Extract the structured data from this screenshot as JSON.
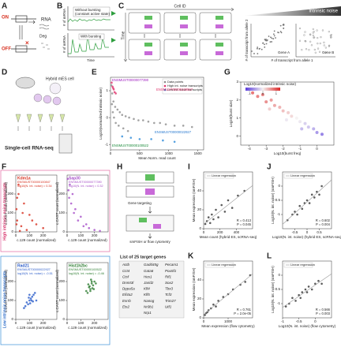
{
  "panels": {
    "A": {
      "label": "A",
      "on": "ON",
      "off": "OFF",
      "rna": "RNA",
      "deg": "Deg"
    },
    "B": {
      "label": "B",
      "y_label": "# of mRNA",
      "legend_top": "Without bursting",
      "legend_top_sub": "(constant active state)",
      "legend_bottom": "With bursting",
      "x_label": "Time"
    },
    "C": {
      "label": "C",
      "cell_id": "Cell ID",
      "time": "Time",
      "gradient": "Intrinsic noise",
      "y_label": "# of transcript from allele 2",
      "x_label": "# of transcript from allele 1",
      "gene_a": "Gene A",
      "gene_b": "Gene B"
    },
    "D": {
      "label": "D",
      "cell": "Hybrid mES cell",
      "method": "Single-cell RNA-seq"
    },
    "E": {
      "label": "E"
    },
    "F": {
      "label": "F",
      "group_high": "High intrinsic noise transcripts",
      "group_low": "Low intrinsic noise transcripts"
    },
    "G": {
      "label": "G"
    },
    "H": {
      "label": "H",
      "step1": "Gene targeting",
      "step2": "smFISH or flow cytometry",
      "list_title": "List of 25 target genes",
      "genes": [
        "Actb",
        "Cct4",
        "Ctsf",
        "Dnmt3l",
        "Dppa5a",
        "Eif4a2",
        "Esrrb",
        "Ets2",
        "Gadd45g",
        "Gata6",
        "Hes1",
        "Jarid2",
        "Klf4",
        "Klf5",
        "Nanog",
        "Nr0b1",
        "Nrp1",
        "Pecam1",
        "Pou5f1",
        "Rif1",
        "Sox2",
        "Tbx3",
        "Tcf3",
        "Trim27",
        "Utf1"
      ]
    },
    "I": {
      "label": "I"
    },
    "J": {
      "label": "J"
    },
    "K": {
      "label": "K"
    },
    "L": {
      "label": "L"
    }
  },
  "chart_data": [
    {
      "type": "scatter",
      "x_label": "Mean Norm. read count",
      "y_label": "Log10(normalized intrinsic noise)",
      "xlim": [
        0,
        1600
      ],
      "xticks": [
        0,
        500,
        1000,
        1500
      ],
      "ylim": [
        -1.2,
        1.5
      ],
      "yticks": [
        -1,
        0,
        1
      ],
      "annotations": [
        "ENSMUST00000077390",
        "ENSMUST00000100847",
        "ENSMUST00000100522",
        "ENSMUST00000022927"
      ],
      "series": [
        {
          "name": "Data points",
          "color": "#8c8c8c",
          "x": [
            15,
            30,
            50,
            80,
            120,
            160,
            200,
            260,
            320,
            400,
            480,
            560,
            650,
            750,
            850,
            950,
            1100,
            1250,
            1400,
            40,
            90,
            140,
            220,
            300,
            60,
            25
          ],
          "values": [
            1.2,
            0.9,
            0.6,
            0.4,
            0.3,
            0.2,
            0.1,
            0.05,
            0,
            -0.05,
            -0.1,
            -0.1,
            -0.15,
            -0.2,
            -0.2,
            -0.25,
            -0.3,
            -0.3,
            -0.35,
            0.2,
            -0.2,
            -0.3,
            -0.4,
            -0.5,
            0.0,
            0.5
          ]
        },
        {
          "name": "High int. noise transcripts",
          "color": "#e0306a",
          "x": [
            20,
            35,
            55,
            70,
            90,
            45
          ],
          "values": [
            1.3,
            1.15,
            1.05,
            0.95,
            0.9,
            1.1
          ]
        },
        {
          "name": "Low int. noise transcripts",
          "color": "#2a8ad8",
          "x": [
            200,
            350,
            500,
            700,
            900,
            1100
          ],
          "values": [
            -0.7,
            -0.75,
            -0.8,
            -0.8,
            -0.85,
            -0.9
          ]
        }
      ]
    },
    {
      "type": "scatter",
      "x_label": "Log10(burst freq)",
      "y_label": "Log10(burst size)",
      "color_label": "Log10(normalized intrinsic noise)",
      "xlim": [
        -4.5,
        1
      ],
      "xticks": [
        -4,
        -3,
        -2,
        -1,
        0
      ],
      "ylim": [
        -0.5,
        3
      ],
      "yticks": [
        0,
        1,
        2,
        3
      ],
      "clim": [
        -1.3,
        1.3
      ],
      "cticks": [
        -1,
        0,
        1
      ],
      "x": [
        -3.8,
        -3.5,
        -3.2,
        -3.0,
        -2.7,
        -2.5,
        -2.2,
        -2.0,
        -1.7,
        -1.5,
        -1.2,
        -1.0,
        -0.7,
        -0.5,
        -0.2,
        0.0,
        0.3,
        -2.8,
        -1.8,
        -0.9
      ],
      "values": [
        2.4,
        2.2,
        2.3,
        1.9,
        2.0,
        1.7,
        1.6,
        1.4,
        1.3,
        1.1,
        1.0,
        0.8,
        0.7,
        0.5,
        0.4,
        0.2,
        0.1,
        1.5,
        0.9,
        0.4
      ],
      "noise": [
        1.0,
        0.9,
        0.9,
        0.8,
        0.7,
        0.6,
        0.5,
        0.4,
        0.3,
        0.2,
        0.0,
        -0.1,
        -0.3,
        -0.4,
        -0.6,
        -0.8,
        -1.0,
        0.3,
        -0.1,
        -0.5
      ]
    },
    {
      "type": "scatter",
      "title": "Kdm1a",
      "subtitle": "ENSMUST00000100847",
      "annotations": [
        "log10(N. int. noise) = 0.34"
      ],
      "color": "#d7301f",
      "x_label": "c.129 count (normalized)",
      "y_label": "c.CAST count (normalized)",
      "xlim": [
        0,
        300
      ],
      "xticks": [
        0,
        100,
        200
      ],
      "ylim": [
        0,
        300
      ],
      "yticks": [
        0,
        100,
        200
      ],
      "x": [
        5,
        10,
        20,
        40,
        60,
        80,
        100,
        150,
        200,
        20,
        30,
        50,
        10,
        5,
        120
      ],
      "values": [
        120,
        60,
        200,
        30,
        150,
        10,
        90,
        40,
        20,
        250,
        5,
        100,
        180,
        40,
        60
      ]
    },
    {
      "type": "scatter",
      "title": "Sap30",
      "subtitle": "ENSMUST00000077390",
      "annotations": [
        "log10(N. int. noise) = 0.32"
      ],
      "color": "#a64ec8",
      "x_label": "c.129 count (normalized)",
      "y_label": "c.CAST count (normalized)",
      "xlim": [
        0,
        300
      ],
      "xticks": [
        0,
        100,
        200
      ],
      "ylim": [
        0,
        300
      ],
      "yticks": [
        0,
        100,
        200
      ],
      "x": [
        10,
        15,
        30,
        50,
        80,
        120,
        160,
        200,
        240,
        40,
        20,
        60,
        100,
        140,
        5
      ],
      "values": [
        220,
        180,
        150,
        100,
        60,
        30,
        20,
        10,
        5,
        200,
        250,
        120,
        80,
        40,
        280
      ]
    },
    {
      "type": "scatter",
      "title": "Rad21",
      "subtitle": "ENSMUST00000022927",
      "annotations": [
        "log10(N. int. noise) = -0.51"
      ],
      "color": "#2b5cc9",
      "x_label": "c.129 count (normalized)",
      "y_label": "c.CAST count (normalized)",
      "xlim": [
        0,
        300
      ],
      "xticks": [
        0,
        100,
        200
      ],
      "ylim": [
        0,
        300
      ],
      "yticks": [
        0,
        100,
        200
      ],
      "x": [
        60,
        80,
        100,
        110,
        120,
        130,
        90,
        140,
        150,
        100,
        70,
        115,
        125,
        105,
        95
      ],
      "values": [
        60,
        90,
        100,
        110,
        120,
        130,
        80,
        140,
        100,
        130,
        70,
        100,
        95,
        85,
        115
      ]
    },
    {
      "type": "scatter",
      "title": "Hist1h2bc",
      "subtitle": "ENSMUST00000100522",
      "annotations": [
        "log10(N. int. noise) = -0.46"
      ],
      "color": "#2e7d32",
      "x_label": "c.129 count (normalized)",
      "y_label": "c.CAST count (normalized)",
      "xlim": [
        0,
        300
      ],
      "xticks": [
        0,
        100,
        200
      ],
      "ylim": [
        0,
        300
      ],
      "yticks": [
        0,
        100,
        200
      ],
      "x": [
        140,
        160,
        170,
        180,
        200,
        190,
        150,
        175,
        165,
        185,
        210,
        155,
        195,
        170,
        180
      ],
      "values": [
        150,
        170,
        160,
        190,
        200,
        180,
        140,
        210,
        175,
        165,
        190,
        185,
        160,
        150,
        200
      ]
    },
    {
      "type": "scatter",
      "legend_label": "Linear regression",
      "annotations": [
        "R = 0.413",
        "P = 0.045"
      ],
      "color": "#333333",
      "x_label": "Mean count (hybrid ES, scRNA-seq)",
      "y_label": "Mean expression (smFISH)",
      "xlim": [
        0,
        600
      ],
      "xticks": [
        0,
        200,
        400
      ],
      "ylim": [
        0,
        60
      ],
      "yticks": [
        0,
        20,
        40
      ],
      "x": [
        20,
        40,
        60,
        80,
        100,
        120,
        150,
        180,
        220,
        260,
        300,
        350,
        420,
        500
      ],
      "values": [
        5,
        8,
        12,
        6,
        15,
        10,
        20,
        12,
        25,
        18,
        30,
        22,
        35,
        40
      ]
    },
    {
      "type": "scatter",
      "legend_label": "Linear regression",
      "annotations": [
        "R = 0.602",
        "P = 0.004"
      ],
      "color": "#333333",
      "x_label": "Log10(N. int. noise) (hybrid ES, scRNA-seq)",
      "y_label": "Log10(N. int. noise) (smFISH)",
      "xlim": [
        -1,
        1
      ],
      "xticks": [
        -0.5,
        0,
        0.5
      ],
      "ylim": [
        -1.5,
        0.5
      ],
      "yticks": [
        -1,
        -0.5,
        0
      ],
      "x": [
        -0.8,
        -0.6,
        -0.5,
        -0.4,
        -0.3,
        -0.2,
        -0.1,
        0,
        0.1,
        0.2,
        0.3,
        0.4,
        0.5,
        0.6
      ],
      "values": [
        -1.2,
        -1.0,
        -0.9,
        -1.0,
        -0.7,
        -0.8,
        -0.6,
        -0.5,
        -0.6,
        -0.3,
        -0.4,
        -0.2,
        -0.3,
        0.0
      ]
    },
    {
      "type": "scatter",
      "legend_label": "Linear regression",
      "annotations": [
        "R = 0.761",
        "P = 2.0e-05"
      ],
      "color": "#333333",
      "x_label": "Mean expression (flow cytometry)",
      "y_label": "Mean expression (smFISH)",
      "xlim": [
        0,
        2000
      ],
      "xticks": [
        0,
        1000
      ],
      "ylim": [
        0,
        60
      ],
      "yticks": [
        0,
        20,
        40
      ],
      "x": [
        50,
        100,
        150,
        200,
        300,
        400,
        500,
        600,
        800,
        1000,
        1200,
        1500,
        1700,
        1900
      ],
      "values": [
        3,
        5,
        6,
        8,
        10,
        14,
        12,
        18,
        22,
        25,
        30,
        35,
        38,
        45
      ]
    },
    {
      "type": "scatter",
      "legend_label": "Linear regression",
      "annotations": [
        "R = 0.566",
        "P = 0.003"
      ],
      "color": "#333333",
      "x_label": "Log10(N. int. noise) (flow cytometry)",
      "y_label": "Log10(N. int. noise) (smFISH)",
      "xlim": [
        -1,
        0.5
      ],
      "xticks": [
        -1,
        -0.5,
        0
      ],
      "ylim": [
        -1.5,
        0.5
      ],
      "yticks": [
        -1,
        -0.5,
        0
      ],
      "x": [
        -0.9,
        -0.8,
        -0.7,
        -0.6,
        -0.5,
        -0.45,
        -0.4,
        -0.3,
        -0.25,
        -0.2,
        -0.1,
        0,
        0.1,
        0.2
      ],
      "values": [
        -1.1,
        -1.0,
        -0.8,
        -0.9,
        -0.7,
        -0.8,
        -0.6,
        -0.5,
        -0.6,
        -0.4,
        -0.5,
        -0.3,
        -0.2,
        -0.3
      ]
    }
  ]
}
